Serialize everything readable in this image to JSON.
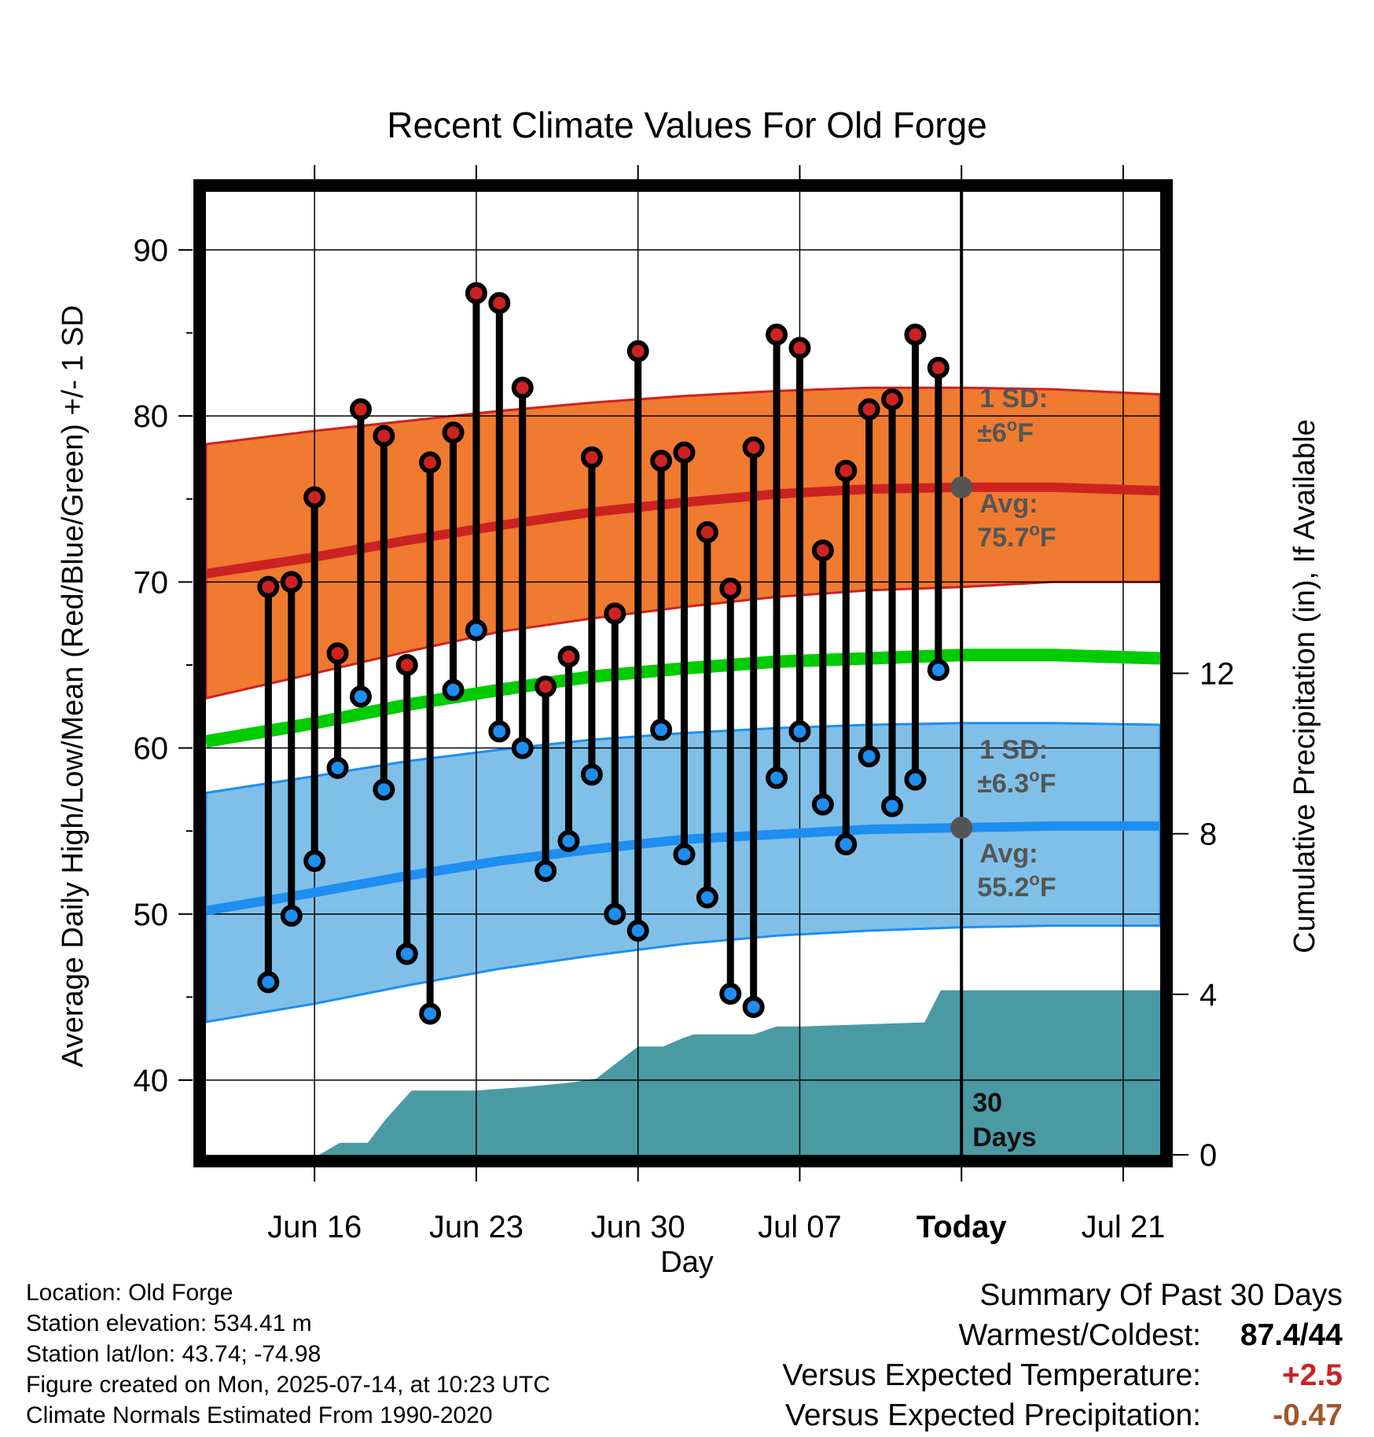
{
  "chart_data": {
    "type": "line",
    "title": "Recent Climate Values For Old Forge",
    "xlabel": "Day",
    "ylabel": "Average Daily High/Low/Mean (Red/Blue/Green) +/- 1 SD",
    "y2label": "Cumulative Precipitation (in), If Available",
    "ylim": [
      35.5,
      93.5
    ],
    "y_ticks": [
      40,
      50,
      60,
      70,
      80,
      90
    ],
    "y2lim": [
      0,
      24
    ],
    "y2_ticks": [
      0,
      4,
      8,
      12
    ],
    "xlim": [
      -2.7,
      38.6
    ],
    "x_ticks": [
      {
        "x": 2,
        "label": "Jun 16"
      },
      {
        "x": 9,
        "label": "Jun 23"
      },
      {
        "x": 16,
        "label": "Jun 30"
      },
      {
        "x": 23,
        "label": "Jul 07"
      },
      {
        "x": 30,
        "label": "Today"
      },
      {
        "x": 37,
        "label": "Jul 21"
      }
    ],
    "today_x": 30,
    "observed": {
      "highs": [
        69.7,
        70.0,
        75.1,
        65.7,
        80.4,
        78.8,
        65.0,
        77.2,
        79.0,
        87.4,
        86.8,
        81.7,
        63.7,
        65.5,
        77.5,
        68.1,
        83.9,
        77.3,
        77.8,
        73.0,
        69.6,
        78.1,
        84.9,
        84.1,
        71.9,
        76.7,
        80.4,
        81.0,
        84.9,
        82.9
      ],
      "lows": [
        45.9,
        49.9,
        53.2,
        58.8,
        63.1,
        57.5,
        47.6,
        44.0,
        63.5,
        67.1,
        61.0,
        60.0,
        52.6,
        54.4,
        58.4,
        50.0,
        49.0,
        61.1,
        53.6,
        51.0,
        45.2,
        44.4,
        58.2,
        61.0,
        56.6,
        54.2,
        59.5,
        56.5,
        58.1,
        64.7
      ]
    },
    "normals": {
      "x": [
        -2.7,
        2,
        6,
        10,
        14,
        18,
        22,
        26,
        30,
        34,
        38.6
      ],
      "high_avg": [
        70.5,
        71.5,
        72.5,
        73.4,
        74.2,
        74.8,
        75.3,
        75.6,
        75.7,
        75.7,
        75.5
      ],
      "high_sd_upper": [
        78.3,
        79.1,
        79.7,
        80.3,
        80.8,
        81.2,
        81.5,
        81.7,
        81.7,
        81.6,
        81.3
      ],
      "high_sd_lower": [
        63.0,
        64.5,
        65.8,
        67.0,
        67.8,
        68.5,
        69.1,
        69.5,
        69.7,
        70.0,
        70.0
      ],
      "mean_avg": [
        60.4,
        61.5,
        62.6,
        63.5,
        64.3,
        64.8,
        65.2,
        65.4,
        65.6,
        65.6,
        65.4
      ],
      "low_avg": [
        50.2,
        51.3,
        52.3,
        53.2,
        53.9,
        54.5,
        54.8,
        55.1,
        55.2,
        55.3,
        55.3
      ],
      "low_sd_upper": [
        57.3,
        58.3,
        59.2,
        59.9,
        60.5,
        60.9,
        61.2,
        61.4,
        61.5,
        61.5,
        61.4
      ],
      "low_sd_lower": [
        43.5,
        44.6,
        45.7,
        46.7,
        47.5,
        48.2,
        48.7,
        49.0,
        49.2,
        49.3,
        49.3
      ]
    },
    "precipitation": {
      "x": [
        2.2,
        3.1,
        4.3,
        5.1,
        6.2,
        7.8,
        9.0,
        11.3,
        13.1,
        14.2,
        15.1,
        16.0,
        17.1,
        17.9,
        18.4,
        19.0,
        21.0,
        22.0,
        23.1,
        28.4,
        29.1,
        38.6
      ],
      "cum": [
        0,
        0.3,
        0.3,
        0.9,
        1.6,
        1.6,
        1.6,
        1.7,
        1.8,
        1.9,
        2.3,
        2.7,
        2.7,
        2.9,
        3.0,
        3.0,
        3.0,
        3.2,
        3.2,
        3.3,
        4.1,
        4.1
      ]
    },
    "annotations": {
      "high_sd": {
        "line1": "1 SD:",
        "line2_prefix": "±6",
        "line2_sup": "o",
        "line2_suffix": "F"
      },
      "high_avg": {
        "line1": "Avg:",
        "line2_prefix": "75.7",
        "line2_sup": "o",
        "line2_suffix": "F"
      },
      "low_sd": {
        "line1": "1 SD:",
        "line2_prefix": "±6.3",
        "line2_sup": "o",
        "line2_suffix": "F"
      },
      "low_avg": {
        "line1": "Avg:",
        "line2_prefix": "55.2",
        "line2_sup": "o",
        "line2_suffix": "F"
      },
      "period": {
        "line1": "30",
        "line2": "Days"
      }
    },
    "colors": {
      "high_band": "#f07a30",
      "high_line": "#cc2222",
      "low_band": "#80c0e8",
      "low_line": "#1e8ef0",
      "mean_line": "#00cc00",
      "precip": "#4a9aa4",
      "high_marker": "#cc2222",
      "low_marker": "#1e8ef0"
    }
  },
  "info": {
    "location": "Location: Old Forge",
    "elevation": "Station elevation: 534.41 m",
    "latlon": "Station lat/lon: 43.74; -74.98",
    "created": "Figure created on Mon, 2025-07-14, at 10:23 UTC",
    "normals": "Climate Normals Estimated From 1990-2020"
  },
  "summary": {
    "heading": "Summary Of Past 30 Days",
    "warmest_label": "Warmest/Coldest:",
    "warmest_value": "87.4/44",
    "temp_label": "Versus Expected Temperature:",
    "temp_value": "+2.5",
    "temp_color": "#cc2222",
    "precip_label": "Versus Expected Precipitation:",
    "precip_value": "-0.47",
    "precip_color": "#a0562a"
  }
}
